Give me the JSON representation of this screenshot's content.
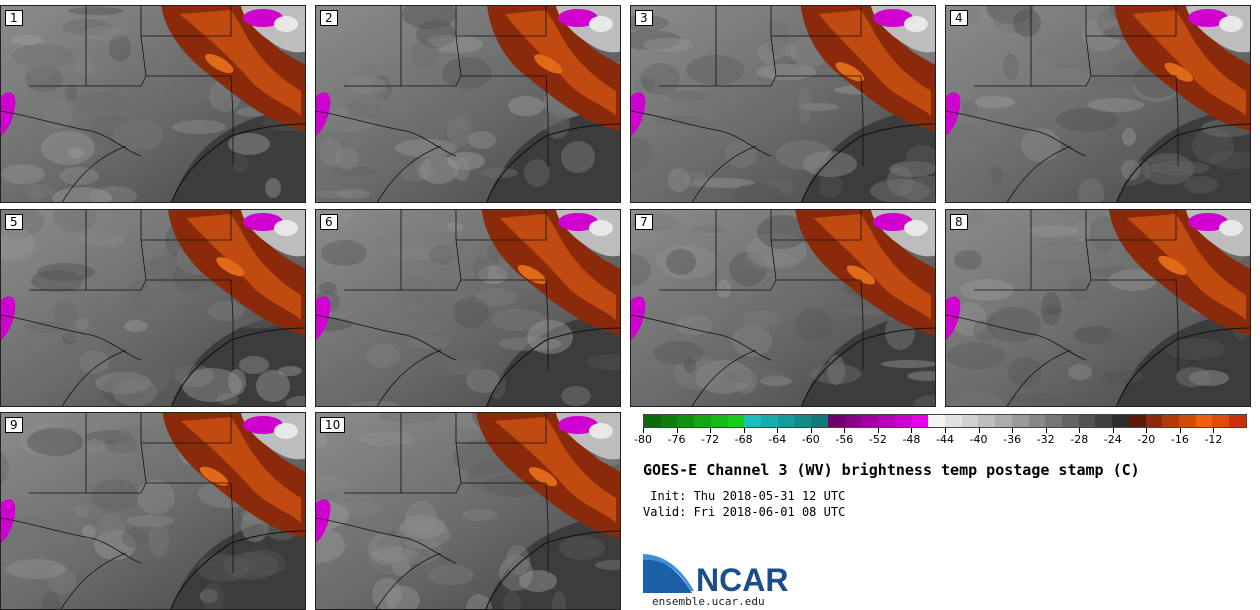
{
  "panels": [
    {
      "label": "1"
    },
    {
      "label": "2"
    },
    {
      "label": "3"
    },
    {
      "label": "4"
    },
    {
      "label": "5"
    },
    {
      "label": "6"
    },
    {
      "label": "7"
    },
    {
      "label": "8"
    },
    {
      "label": "9"
    },
    {
      "label": "10"
    }
  ],
  "colorbar": {
    "min": -80,
    "max": -10,
    "step": 2,
    "tick_labels": [
      "-80",
      "-76",
      "-72",
      "-68",
      "-64",
      "-60",
      "-56",
      "-52",
      "-48",
      "-44",
      "-40",
      "-36",
      "-32",
      "-28",
      "-24",
      "-20",
      "-16",
      "-12"
    ],
    "colors": [
      "#0b6b0b",
      "#0e7d0e",
      "#119011",
      "#14a414",
      "#17b817",
      "#1ccc1c",
      "#19bfbf",
      "#17adad",
      "#159b9b",
      "#138989",
      "#117777",
      "#700070",
      "#880088",
      "#a000a0",
      "#b800b8",
      "#d000d0",
      "#e800e8",
      "#f4f4f4",
      "#e2e2e2",
      "#d0d0d0",
      "#bebebe",
      "#acacac",
      "#9a9a9a",
      "#888888",
      "#767676",
      "#646464",
      "#525252",
      "#404040",
      "#2e2e2e",
      "#5a1a0a",
      "#8a2a0a",
      "#b03a08",
      "#d04a08",
      "#ee6010",
      "#e44a10",
      "#c83008"
    ]
  },
  "title": "GOES-E Channel 3 (WV) brightness temp postage stamp (C)",
  "init": " Init: Thu 2018-05-31 12 UTC",
  "valid": "Valid: Fri 2018-06-01 08 UTC",
  "logo": {
    "text": "NCAR",
    "color": "#1a4e8a",
    "swoosh_color": "#1e73be"
  },
  "site": "ensemble.ucar.edu"
}
